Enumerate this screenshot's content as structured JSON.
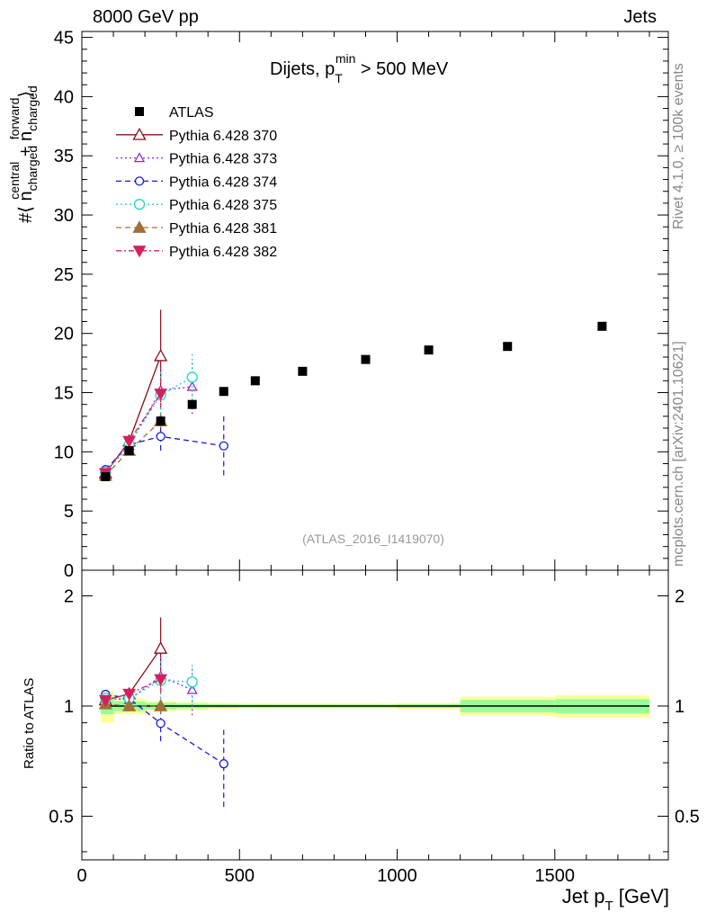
{
  "header": {
    "left_label": "8000 GeV pp",
    "right_label": "Jets"
  },
  "side_labels": {
    "rivet": "Rivet 4.1.0, ≥ 100k events",
    "mcplots": "mcplots.cern.ch [arXiv:2401.10621]"
  },
  "chart_data": {
    "type": "scatter",
    "title_main": "Dijets, p",
    "title_sup": "min",
    "title_sub": "T",
    "title_tail": " > 500 MeV",
    "watermark": "(ATLAS_2016_I1419070)",
    "ylabel_main": {
      "hash": "#⟨ n",
      "sup1": "central",
      "sub1": "charged",
      "plus": " + n",
      "sup2": "forward",
      "sub2": "charged",
      "tail": "⟩"
    },
    "ylabel_ratio": "Ratio to ATLAS",
    "xlabel": {
      "main": "Jet p",
      "sub": "T",
      "tail": " [GeV]"
    },
    "xlim": [
      0,
      1860
    ],
    "ylim_main": [
      0,
      45.5
    ],
    "ylim_ratio": [
      0.38,
      2.35
    ],
    "xticks": [
      0,
      500,
      1000,
      1500
    ],
    "yticks_main": [
      0,
      5,
      10,
      15,
      20,
      25,
      30,
      35,
      40,
      45
    ],
    "yticks_ratio": [
      0.5,
      1,
      2
    ],
    "legend": [
      "ATLAS",
      "Pythia 6.428 370",
      "Pythia 6.428 373",
      "Pythia 6.428 374",
      "Pythia 6.428 375",
      "Pythia 6.428 381",
      "Pythia 6.428 382"
    ],
    "atlas": {
      "name": "ATLAS",
      "x": [
        75,
        150,
        250,
        350,
        450,
        550,
        700,
        900,
        1100,
        1350,
        1650
      ],
      "y": [
        7.9,
        10.1,
        12.6,
        14.0,
        15.1,
        16.0,
        16.8,
        17.8,
        18.6,
        18.9,
        20.6
      ],
      "band_edges": [
        60,
        100,
        200,
        300,
        400,
        500,
        600,
        800,
        1000,
        1200,
        1500,
        1800
      ],
      "band_outer": [
        0.1,
        0.05,
        0.03,
        0.025,
        0.02,
        0.015,
        0.015,
        0.015,
        0.02,
        0.06,
        0.07
      ],
      "band_inner": [
        0.05,
        0.03,
        0.02,
        0.015,
        0.012,
        0.01,
        0.01,
        0.01,
        0.012,
        0.04,
        0.045
      ]
    },
    "series": [
      {
        "name": "Pythia 6.428 370",
        "color": "#8b0f1e",
        "dash": "",
        "marker": "tri-open",
        "x": [
          75,
          150,
          250
        ],
        "y": [
          8.2,
          10.9,
          18.1
        ],
        "err": [
          0.25,
          0.4,
          3.9
        ]
      },
      {
        "name": "Pythia 6.428 373",
        "color": "#8b2fd0",
        "dash": "2,3",
        "marker": "tri-open-small",
        "x": [
          75,
          150,
          250,
          350
        ],
        "y": [
          8.3,
          10.5,
          15.2,
          15.5
        ],
        "err": [
          0.25,
          0.5,
          2.0,
          2.3
        ]
      },
      {
        "name": "Pythia 6.428 374",
        "color": "#1a1ad6",
        "dash": "6,4",
        "marker": "circle-open",
        "x": [
          75,
          150,
          250,
          450
        ],
        "y": [
          8.5,
          10.6,
          11.3,
          10.5
        ],
        "err": [
          0.25,
          0.5,
          1.2,
          2.5
        ]
      },
      {
        "name": "Pythia 6.428 375",
        "color": "#1ed6c0",
        "dash": "2,3",
        "marker": "circle-open-big",
        "x": [
          75,
          150,
          250,
          350
        ],
        "y": [
          8.3,
          10.6,
          14.8,
          16.3
        ],
        "err": [
          0.25,
          0.5,
          2.0,
          2.0
        ]
      },
      {
        "name": "Pythia 6.428 381",
        "color": "#a0703c",
        "dash": "6,4",
        "marker": "tri-filled",
        "x": [
          75,
          150,
          250
        ],
        "y": [
          8.0,
          10.1,
          12.6
        ],
        "err": [
          0.2,
          0.3,
          0.6
        ]
      },
      {
        "name": "Pythia 6.428 382",
        "color": "#d6205e",
        "dash": "6,3,2,3",
        "marker": "tri-down-filled",
        "x": [
          75,
          150,
          250
        ],
        "y": [
          8.2,
          10.9,
          14.9
        ],
        "err": [
          0.25,
          0.4,
          1.2
        ]
      }
    ]
  }
}
